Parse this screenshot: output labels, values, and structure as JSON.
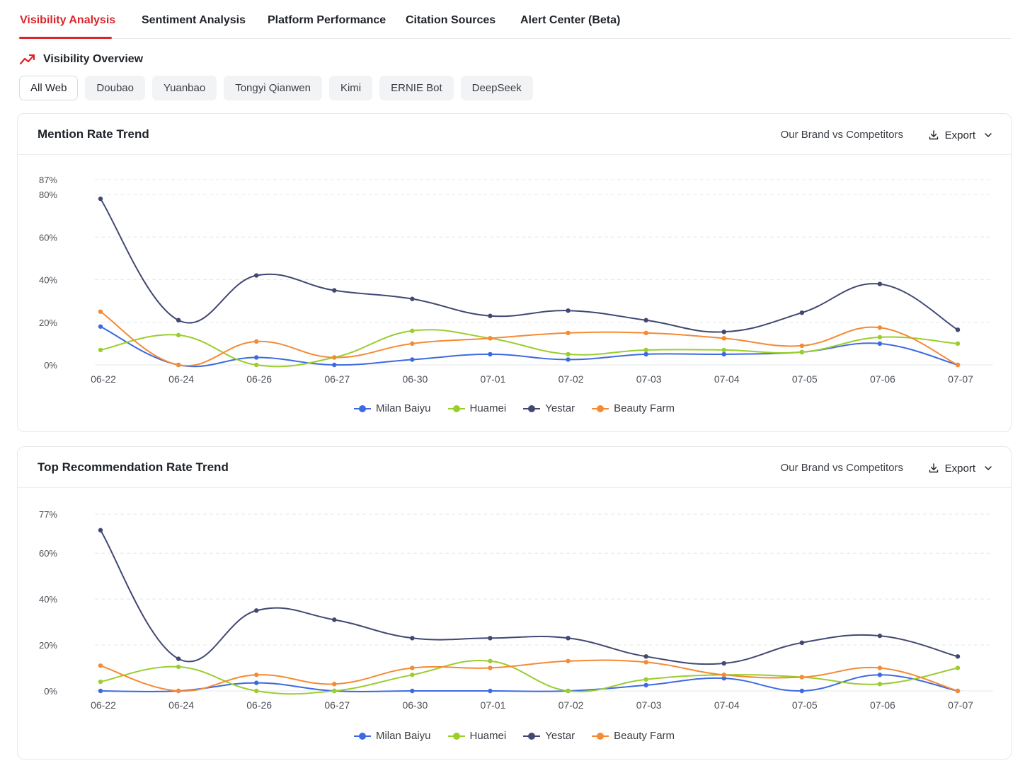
{
  "tabs": [
    {
      "label": "Visibility Analysis",
      "active": true
    },
    {
      "label": "Sentiment Analysis",
      "active": false
    },
    {
      "label": "Platform Performance",
      "active": false
    },
    {
      "label": "Citation Sources",
      "active": false
    },
    {
      "label": "Alert Center (Beta)",
      "active": false
    }
  ],
  "section": {
    "title": "Visibility Overview",
    "icon": "trend-up-icon"
  },
  "filters": [
    {
      "label": "All Web",
      "active": true
    },
    {
      "label": "Doubao",
      "active": false
    },
    {
      "label": "Yuanbao",
      "active": false
    },
    {
      "label": "Tongyi Qianwen",
      "active": false
    },
    {
      "label": "Kimi",
      "active": false
    },
    {
      "label": "ERNIE Bot",
      "active": false
    },
    {
      "label": "DeepSeek",
      "active": false
    }
  ],
  "colors": {
    "accent": "#d9262b",
    "milan": "#3d6ae0",
    "huamei": "#9acd2e",
    "yestar": "#414872",
    "beauty": "#f58a33"
  },
  "cards": [
    {
      "title": "Mention Rate Trend",
      "compare_label": "Our Brand vs Competitors",
      "export_label": "Export"
    },
    {
      "title": "Top Recommendation Rate Trend",
      "compare_label": "Our Brand vs Competitors",
      "export_label": "Export"
    }
  ],
  "chart_data": [
    {
      "type": "line",
      "title": "Mention Rate Trend",
      "x": [
        "06-22",
        "06-24",
        "06-26",
        "06-27",
        "06-30",
        "07-01",
        "07-02",
        "07-03",
        "07-04",
        "07-05",
        "07-06",
        "07-07"
      ],
      "y_ticks": [
        "0%",
        "20%",
        "40%",
        "60%",
        "80%",
        "87%"
      ],
      "ylim": [
        0,
        87
      ],
      "grid": true,
      "legend_position": "bottom",
      "series": [
        {
          "name": "Milan Baiyu",
          "color": "#3d6ae0",
          "values": [
            18,
            0,
            3.5,
            0,
            2.5,
            5,
            2.5,
            5,
            5,
            6,
            10,
            0
          ]
        },
        {
          "name": "Huamei",
          "color": "#9acd2e",
          "values": [
            7,
            14,
            0,
            3.5,
            16,
            12.5,
            5,
            7,
            7,
            6,
            13,
            10
          ]
        },
        {
          "name": "Yestar",
          "color": "#414872",
          "values": [
            78,
            21,
            42,
            35,
            31,
            23,
            25.5,
            21,
            15.5,
            24.5,
            38,
            16.5
          ]
        },
        {
          "name": "Beauty Farm",
          "color": "#f58a33",
          "values": [
            25,
            0,
            11,
            3.5,
            10,
            12.5,
            15,
            15,
            12.5,
            9,
            17.5,
            0
          ]
        }
      ]
    },
    {
      "type": "line",
      "title": "Top Recommendation Rate Trend",
      "x": [
        "06-22",
        "06-24",
        "06-26",
        "06-27",
        "06-30",
        "07-01",
        "07-02",
        "07-03",
        "07-04",
        "07-05",
        "07-06",
        "07-07"
      ],
      "y_ticks": [
        "0%",
        "20%",
        "40%",
        "60%",
        "77%"
      ],
      "ylim": [
        0,
        77
      ],
      "grid": true,
      "legend_position": "bottom",
      "series": [
        {
          "name": "Milan Baiyu",
          "color": "#3d6ae0",
          "values": [
            0,
            0,
            3.5,
            0,
            0,
            0,
            0,
            2.5,
            5.5,
            0,
            7,
            0
          ]
        },
        {
          "name": "Huamei",
          "color": "#9acd2e",
          "values": [
            4,
            10.5,
            0,
            0,
            7,
            13,
            0,
            5,
            7,
            6,
            3,
            10
          ]
        },
        {
          "name": "Yestar",
          "color": "#414872",
          "values": [
            70,
            14,
            35,
            31,
            23,
            23,
            23,
            15,
            12,
            21,
            24,
            15
          ]
        },
        {
          "name": "Beauty Farm",
          "color": "#f58a33",
          "values": [
            11,
            0,
            7,
            3,
            10,
            10,
            13,
            12.5,
            7,
            6,
            10,
            0
          ]
        }
      ]
    }
  ]
}
